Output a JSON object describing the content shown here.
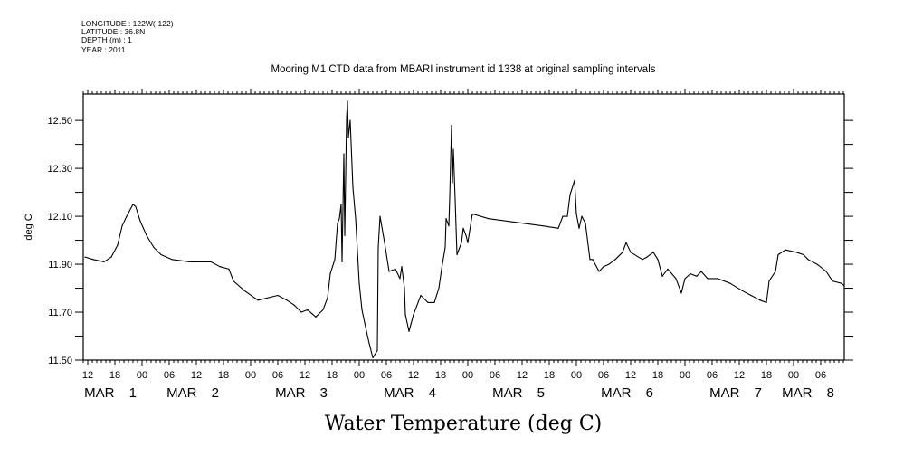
{
  "header": {
    "lines": [
      "LONGITUDE : 122W(-122)",
      "LATITUDE : 36.8N",
      "DEPTH (m) : 1",
      "YEAR : 2011"
    ]
  },
  "chart_data": {
    "type": "line",
    "title": "Mooring M1 CTD data from MBARI instrument id 1338 at original sampling intervals",
    "xlabel": "Water Temperature (deg C)",
    "ylabel": "deg C",
    "x_units": "hours since MAR 1 2011 00:00",
    "xlim": [
      11,
      179.2
    ],
    "ylim": [
      11.5,
      12.61
    ],
    "yticks": [
      11.5,
      11.6,
      11.7,
      11.8,
      11.9,
      12.0,
      12.1,
      12.2,
      12.3,
      12.4,
      12.5
    ],
    "ytick_labels": [
      "11.50",
      "11.70",
      "11.90",
      "12.10",
      "12.30",
      "12.50"
    ],
    "ytick_label_values": [
      11.5,
      11.7,
      11.9,
      12.1,
      12.3,
      12.5
    ],
    "xtick_hours": [
      12,
      18,
      24,
      30,
      36,
      42,
      48,
      54,
      60,
      66,
      72,
      78,
      84,
      90,
      96,
      102,
      108,
      114,
      120,
      126,
      132,
      138,
      144,
      150,
      156,
      162,
      168,
      174
    ],
    "xtick_labels": [
      "12",
      "18",
      "00",
      "06",
      "12",
      "18",
      "00",
      "06",
      "12",
      "18",
      "00",
      "06",
      "12",
      "18",
      "00",
      "06",
      "12",
      "18",
      "00",
      "06",
      "12",
      "18",
      "00",
      "06",
      "12",
      "18",
      "00",
      "06"
    ],
    "day_labels": [
      "MAR 1",
      "MAR 2",
      "MAR 3",
      "MAR 4",
      "MAR 5",
      "MAR 6",
      "MAR 7",
      "MAR 8"
    ],
    "day_label_noon_hours": [
      12,
      36,
      60,
      84,
      108,
      132,
      156,
      180
    ],
    "grid": false,
    "legend": "none",
    "series": [
      {
        "name": "Water Temperature",
        "color": "#000000",
        "x": [
          11.4,
          13.2,
          15.6,
          17.2,
          18.6,
          19.6,
          20.6,
          22.0,
          22.6,
          23.6,
          25.0,
          26.6,
          28.2,
          30.6,
          34.6,
          39.2,
          41.2,
          43.2,
          44.2,
          46.6,
          49.6,
          54.0,
          56.0,
          57.6,
          59.2,
          60.6,
          62.4,
          64.0,
          65.0,
          65.6,
          66.6,
          67.2,
          67.6,
          68.0,
          68.2,
          68.6,
          68.8,
          69.2,
          69.4,
          69.6,
          70.0,
          70.6,
          71.2,
          72.0,
          72.6,
          73.6,
          74.2,
          75.0,
          76.0,
          76.2,
          76.6,
          77.6,
          78.6,
          80.0,
          81.0,
          81.4,
          82.0,
          82.2,
          83.0,
          84.0,
          85.6,
          87.2,
          88.6,
          89.6,
          90.2,
          91.0,
          91.2,
          91.8,
          92.0,
          92.4,
          92.6,
          92.8,
          93.2,
          93.6,
          94.6,
          95.0,
          95.6,
          96.0,
          97.0,
          100.6,
          112.6,
          116.0,
          117.0,
          118.0,
          118.6,
          119.6,
          120.0,
          120.6,
          121.2,
          122.0,
          123.0,
          123.6,
          125.0,
          126.0,
          127.2,
          128.6,
          130.2,
          131.0,
          132.0,
          134.6,
          135.6,
          137.0,
          138.0,
          139.0,
          140.2,
          142.0,
          143.2,
          144.0,
          145.2,
          146.6,
          147.6,
          149.0,
          151.2,
          154.0,
          156.6,
          158.6,
          160.6,
          162.0,
          162.6,
          164.0,
          164.6,
          166.2,
          168.6,
          170.2,
          171.2,
          173.2,
          175.2,
          176.6,
          178.6,
          179.2
        ],
        "y": [
          11.93,
          11.92,
          11.91,
          11.93,
          11.98,
          12.06,
          12.1,
          12.15,
          12.14,
          12.08,
          12.02,
          11.97,
          11.94,
          11.92,
          11.91,
          11.91,
          11.89,
          11.88,
          11.83,
          11.79,
          11.75,
          11.77,
          11.75,
          11.73,
          11.7,
          11.71,
          11.68,
          11.71,
          11.76,
          11.86,
          11.92,
          12.07,
          12.09,
          12.15,
          11.91,
          12.36,
          12.02,
          12.51,
          12.58,
          12.43,
          12.5,
          12.22,
          12.09,
          11.82,
          11.71,
          11.62,
          11.57,
          11.51,
          11.54,
          11.97,
          12.1,
          11.99,
          11.87,
          11.88,
          11.84,
          11.89,
          11.8,
          11.69,
          11.62,
          11.69,
          11.77,
          11.74,
          11.74,
          11.8,
          11.88,
          11.97,
          12.09,
          12.06,
          12.18,
          12.48,
          12.24,
          12.38,
          12.17,
          11.94,
          11.99,
          12.05,
          12.02,
          11.99,
          12.11,
          12.09,
          12.06,
          12.05,
          12.1,
          12.1,
          12.19,
          12.25,
          12.11,
          12.05,
          12.1,
          12.07,
          11.92,
          11.92,
          11.87,
          11.89,
          11.9,
          11.92,
          11.95,
          11.99,
          11.95,
          11.92,
          11.93,
          11.95,
          11.92,
          11.85,
          11.88,
          11.84,
          11.78,
          11.84,
          11.86,
          11.85,
          11.87,
          11.84,
          11.84,
          11.82,
          11.79,
          11.77,
          11.75,
          11.74,
          11.83,
          11.87,
          11.94,
          11.96,
          11.95,
          11.94,
          11.92,
          11.9,
          11.87,
          11.83,
          11.82,
          11.81
        ]
      }
    ]
  }
}
